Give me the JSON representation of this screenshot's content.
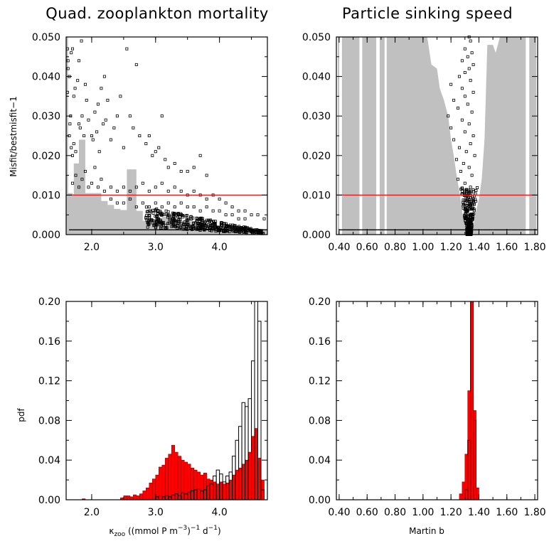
{
  "chart_data": [
    {
      "id": "tl",
      "type": "scatter",
      "title": "Quad. zooplankton mortality",
      "ylabel": "Misfit/bestmisfit−1",
      "xlim": [
        1.6,
        4.75
      ],
      "ylim": [
        0,
        0.05
      ],
      "xticks": [
        2.0,
        3.0,
        4.0
      ],
      "yticks": [
        "0.000",
        "0.010",
        "0.020",
        "0.030",
        "0.040",
        "0.050"
      ],
      "threshold": 0.01,
      "floor": 0.0012,
      "envelope": [
        [
          1.6,
          0.05
        ],
        [
          1.63,
          0.0105
        ],
        [
          1.7,
          0.0102
        ],
        [
          1.72,
          0.018
        ],
        [
          1.78,
          0.018
        ],
        [
          1.8,
          0.024
        ],
        [
          1.85,
          0.024
        ],
        [
          1.9,
          0.0105
        ],
        [
          2.0,
          0.0105
        ],
        [
          2.05,
          0.0105
        ],
        [
          2.15,
          0.0085
        ],
        [
          2.25,
          0.0075
        ],
        [
          2.35,
          0.0065
        ],
        [
          2.45,
          0.0062
        ],
        [
          2.55,
          0.0165
        ],
        [
          2.62,
          0.0165
        ],
        [
          2.7,
          0.006
        ],
        [
          2.8,
          0.0035
        ],
        [
          2.9,
          0.003
        ],
        [
          3.0,
          0.004
        ],
        [
          3.1,
          0.0045
        ],
        [
          3.2,
          0.004
        ],
        [
          3.4,
          0.0035
        ],
        [
          3.6,
          0.0025
        ],
        [
          3.8,
          0.002
        ],
        [
          4.0,
          0.0018
        ],
        [
          4.2,
          0.0016
        ],
        [
          4.4,
          0.0015
        ],
        [
          4.6,
          0.0014
        ],
        [
          4.75,
          0.0014
        ]
      ],
      "points": [
        [
          1.62,
          0.036
        ],
        [
          1.62,
          0.047
        ],
        [
          1.63,
          0.044
        ],
        [
          1.63,
          0.042
        ],
        [
          1.65,
          0.04
        ],
        [
          1.65,
          0.025
        ],
        [
          1.66,
          0.028
        ],
        [
          1.67,
          0.03
        ],
        [
          1.68,
          0.046
        ],
        [
          1.7,
          0.047
        ],
        [
          1.72,
          0.035
        ],
        [
          1.74,
          0.037
        ],
        [
          1.78,
          0.039
        ],
        [
          1.8,
          0.044
        ],
        [
          1.84,
          0.049
        ],
        [
          1.68,
          0.022
        ],
        [
          1.7,
          0.02
        ],
        [
          1.72,
          0.023
        ],
        [
          1.75,
          0.021
        ],
        [
          1.8,
          0.028
        ],
        [
          1.82,
          0.027
        ],
        [
          1.85,
          0.03
        ],
        [
          1.88,
          0.025
        ],
        [
          1.9,
          0.038
        ],
        [
          1.92,
          0.034
        ],
        [
          1.95,
          0.029
        ],
        [
          2.0,
          0.025
        ],
        [
          2.02,
          0.024
        ],
        [
          2.05,
          0.031
        ],
        [
          2.08,
          0.026
        ],
        [
          2.1,
          0.033
        ],
        [
          2.12,
          0.021
        ],
        [
          2.15,
          0.037
        ],
        [
          2.18,
          0.028
        ],
        [
          2.2,
          0.04
        ],
        [
          2.22,
          0.029
        ],
        [
          2.25,
          0.034
        ],
        [
          2.3,
          0.024
        ],
        [
          2.35,
          0.027
        ],
        [
          2.4,
          0.03
        ],
        [
          2.45,
          0.035
        ],
        [
          2.5,
          0.022
        ],
        [
          2.55,
          0.047
        ],
        [
          2.6,
          0.03
        ],
        [
          2.65,
          0.027
        ],
        [
          2.7,
          0.043
        ],
        [
          2.75,
          0.025
        ],
        [
          2.85,
          0.023
        ],
        [
          2.9,
          0.025
        ],
        [
          2.95,
          0.02
        ],
        [
          3.0,
          0.021
        ],
        [
          3.05,
          0.022
        ],
        [
          3.1,
          0.03
        ],
        [
          3.15,
          0.019
        ],
        [
          3.2,
          0.017
        ],
        [
          3.3,
          0.018
        ],
        [
          3.4,
          0.016
        ],
        [
          3.5,
          0.016
        ],
        [
          3.6,
          0.017
        ],
        [
          3.7,
          0.02
        ],
        [
          3.8,
          0.015
        ],
        [
          1.7,
          0.013
        ],
        [
          1.75,
          0.015
        ],
        [
          1.8,
          0.012
        ],
        [
          1.85,
          0.014
        ],
        [
          1.9,
          0.016
        ],
        [
          1.95,
          0.012
        ],
        [
          2.0,
          0.013
        ],
        [
          2.05,
          0.017
        ],
        [
          2.1,
          0.012
        ],
        [
          2.15,
          0.014
        ],
        [
          2.2,
          0.011
        ],
        [
          2.3,
          0.012
        ],
        [
          2.4,
          0.011
        ],
        [
          2.5,
          0.012
        ],
        [
          2.6,
          0.011
        ],
        [
          2.7,
          0.012
        ],
        [
          2.8,
          0.013
        ],
        [
          2.9,
          0.011
        ],
        [
          3.0,
          0.012
        ],
        [
          3.1,
          0.013
        ],
        [
          3.2,
          0.011
        ],
        [
          3.3,
          0.012
        ],
        [
          3.4,
          0.011
        ],
        [
          3.5,
          0.01
        ],
        [
          3.6,
          0.011
        ],
        [
          3.7,
          0.01
        ],
        [
          3.8,
          0.009
        ],
        [
          3.9,
          0.01
        ],
        [
          4.0,
          0.009
        ],
        [
          4.1,
          0.008
        ],
        [
          4.2,
          0.007
        ],
        [
          4.3,
          0.006
        ],
        [
          4.4,
          0.006
        ],
        [
          4.5,
          0.005
        ],
        [
          4.6,
          0.005
        ],
        [
          4.7,
          0.004
        ],
        [
          2.3,
          0.009
        ],
        [
          2.4,
          0.008
        ],
        [
          2.5,
          0.008
        ],
        [
          2.6,
          0.009
        ],
        [
          2.7,
          0.007
        ],
        [
          2.8,
          0.008
        ],
        [
          2.9,
          0.007
        ],
        [
          3.0,
          0.008
        ],
        [
          3.1,
          0.007
        ],
        [
          3.2,
          0.008
        ],
        [
          3.3,
          0.007
        ],
        [
          3.4,
          0.008
        ],
        [
          3.5,
          0.007
        ],
        [
          3.6,
          0.007
        ],
        [
          3.7,
          0.006
        ],
        [
          3.8,
          0.007
        ],
        [
          3.9,
          0.006
        ],
        [
          4.0,
          0.006
        ],
        [
          4.1,
          0.005
        ],
        [
          4.2,
          0.005
        ],
        [
          4.3,
          0.004
        ],
        [
          4.4,
          0.004
        ]
      ],
      "points_dense": {
        "x": [
          2.8,
          4.75
        ],
        "center": [
          3.35,
          0.0035
        ]
      }
    },
    {
      "id": "tr",
      "type": "scatter",
      "title": "Particle sinking speed",
      "xlim": [
        0.38,
        1.82
      ],
      "ylim": [
        0,
        0.05
      ],
      "xticks": [
        "0.40",
        "0.60",
        "0.80",
        "1.00",
        "1.20",
        "1.40",
        "1.60",
        "1.80"
      ],
      "yticks": [
        "0.000",
        "0.010",
        "0.020",
        "0.030",
        "0.040",
        "0.050"
      ],
      "threshold": 0.01,
      "floor": 0.0012,
      "gaps": [
        [
          0.4,
          0.42
        ],
        [
          0.545,
          0.565
        ],
        [
          0.665,
          0.69
        ],
        [
          0.725,
          0.74
        ],
        [
          1.735,
          1.76
        ]
      ],
      "cutout": [
        [
          1.03,
          0.05
        ],
        [
          1.06,
          0.043
        ],
        [
          1.1,
          0.042
        ],
        [
          1.12,
          0.037
        ],
        [
          1.15,
          0.034
        ],
        [
          1.18,
          0.03
        ],
        [
          1.2,
          0.024
        ],
        [
          1.22,
          0.02
        ],
        [
          1.24,
          0.015
        ],
        [
          1.26,
          0.011
        ],
        [
          1.28,
          0.006
        ],
        [
          1.3,
          0.002
        ],
        [
          1.33,
          0.0
        ],
        [
          1.36,
          0.002
        ],
        [
          1.38,
          0.006
        ],
        [
          1.4,
          0.009
        ],
        [
          1.42,
          0.014
        ],
        [
          1.44,
          0.024
        ],
        [
          1.46,
          0.048
        ],
        [
          1.5,
          0.048
        ],
        [
          1.52,
          0.046
        ],
        [
          1.55,
          0.05
        ]
      ],
      "points": [
        [
          1.33,
          0.05
        ],
        [
          1.34,
          0.049
        ],
        [
          1.3,
          0.047
        ],
        [
          1.32,
          0.045
        ],
        [
          1.35,
          0.046
        ],
        [
          1.28,
          0.044
        ],
        [
          1.36,
          0.043
        ],
        [
          1.3,
          0.041
        ],
        [
          1.33,
          0.042
        ],
        [
          1.26,
          0.04
        ],
        [
          1.34,
          0.039
        ],
        [
          1.2,
          0.038
        ],
        [
          1.28,
          0.037
        ],
        [
          1.36,
          0.036
        ],
        [
          1.22,
          0.034
        ],
        [
          1.3,
          0.035
        ],
        [
          1.32,
          0.033
        ],
        [
          1.25,
          0.032
        ],
        [
          1.35,
          0.031
        ],
        [
          1.18,
          0.03
        ],
        [
          1.28,
          0.029
        ],
        [
          1.33,
          0.028
        ],
        [
          1.2,
          0.027
        ],
        [
          1.3,
          0.026
        ],
        [
          1.36,
          0.025
        ],
        [
          1.22,
          0.024
        ],
        [
          1.34,
          0.023
        ],
        [
          1.26,
          0.022
        ],
        [
          1.31,
          0.021
        ],
        [
          1.37,
          0.02
        ],
        [
          1.24,
          0.019
        ],
        [
          1.29,
          0.018
        ],
        [
          1.33,
          0.017
        ],
        [
          1.27,
          0.016
        ],
        [
          1.35,
          0.015
        ],
        [
          1.25,
          0.014
        ],
        [
          1.3,
          0.013
        ],
        [
          1.34,
          0.012
        ],
        [
          1.28,
          0.011
        ],
        [
          1.32,
          0.01
        ],
        [
          1.36,
          0.009
        ],
        [
          1.3,
          0.008
        ],
        [
          1.33,
          0.007
        ],
        [
          1.31,
          0.006
        ],
        [
          1.34,
          0.005
        ],
        [
          1.32,
          0.004
        ],
        [
          1.33,
          0.003
        ],
        [
          1.325,
          0.002
        ],
        [
          1.335,
          0.001
        ]
      ]
    },
    {
      "id": "bl",
      "type": "bar",
      "ylabel": "pdf",
      "xlabel_sym": "κ",
      "xlabel_sub": "zoo",
      "xlabel_main": " ((mmol P m",
      "xlabel_sup1": "−3",
      "xlabel_mid": ")",
      "xlabel_sup2": "−1",
      "xlabel_end": " d",
      "xlabel_sup3": "−1",
      "xlabel_close": ")",
      "xlim": [
        1.6,
        4.75
      ],
      "ylim": [
        0,
        0.2
      ],
      "xticks": [
        "2.0",
        "3.0",
        "4.0"
      ],
      "yticks": [
        "0.00",
        "0.04",
        "0.08",
        "0.12",
        "0.16",
        "0.20"
      ],
      "bin_width": 0.05,
      "red_bins": [
        [
          1.85,
          0.001
        ],
        [
          2.45,
          0.002
        ],
        [
          2.5,
          0.004
        ],
        [
          2.55,
          0.004
        ],
        [
          2.6,
          0.003
        ],
        [
          2.65,
          0.005
        ],
        [
          2.7,
          0.004
        ],
        [
          2.75,
          0.006
        ],
        [
          2.8,
          0.009
        ],
        [
          2.85,
          0.012
        ],
        [
          2.9,
          0.017
        ],
        [
          2.95,
          0.021
        ],
        [
          3.0,
          0.025
        ],
        [
          3.05,
          0.033
        ],
        [
          3.1,
          0.035
        ],
        [
          3.15,
          0.042
        ],
        [
          3.2,
          0.046
        ],
        [
          3.25,
          0.055
        ],
        [
          3.3,
          0.048
        ],
        [
          3.35,
          0.044
        ],
        [
          3.4,
          0.04
        ],
        [
          3.45,
          0.038
        ],
        [
          3.5,
          0.036
        ],
        [
          3.55,
          0.032
        ],
        [
          3.6,
          0.03
        ],
        [
          3.65,
          0.028
        ],
        [
          3.7,
          0.025
        ],
        [
          3.75,
          0.027
        ],
        [
          3.8,
          0.021
        ],
        [
          3.85,
          0.02
        ],
        [
          3.9,
          0.018
        ],
        [
          3.95,
          0.016
        ],
        [
          4.0,
          0.018
        ],
        [
          4.05,
          0.016
        ],
        [
          4.1,
          0.017
        ],
        [
          4.15,
          0.02
        ],
        [
          4.2,
          0.025
        ],
        [
          4.25,
          0.03
        ],
        [
          4.3,
          0.032
        ],
        [
          4.35,
          0.036
        ],
        [
          4.4,
          0.04
        ],
        [
          4.45,
          0.048
        ],
        [
          4.5,
          0.064
        ],
        [
          4.55,
          0.072
        ],
        [
          4.6,
          0.042
        ],
        [
          4.65,
          0.02
        ]
      ],
      "outline_bins": [
        [
          3.0,
          0.003
        ],
        [
          3.05,
          0.004
        ],
        [
          3.1,
          0.003
        ],
        [
          3.15,
          0.004
        ],
        [
          3.2,
          0.003
        ],
        [
          3.25,
          0.005
        ],
        [
          3.3,
          0.006
        ],
        [
          3.35,
          0.004
        ],
        [
          3.4,
          0.007
        ],
        [
          3.45,
          0.006
        ],
        [
          3.5,
          0.008
        ],
        [
          3.55,
          0.009
        ],
        [
          3.6,
          0.01
        ],
        [
          3.65,
          0.011
        ],
        [
          3.7,
          0.009
        ],
        [
          3.75,
          0.01
        ],
        [
          3.8,
          0.014
        ],
        [
          3.85,
          0.016
        ],
        [
          3.9,
          0.024
        ],
        [
          3.95,
          0.03
        ],
        [
          4.0,
          0.026
        ],
        [
          4.05,
          0.018
        ],
        [
          4.1,
          0.024
        ],
        [
          4.15,
          0.028
        ],
        [
          4.2,
          0.044
        ],
        [
          4.25,
          0.06
        ],
        [
          4.3,
          0.074
        ],
        [
          4.35,
          0.098
        ],
        [
          4.4,
          0.094
        ],
        [
          4.45,
          0.102
        ],
        [
          4.5,
          0.14
        ],
        [
          4.55,
          0.2
        ],
        [
          4.6,
          0.18
        ],
        [
          4.65,
          0.01
        ]
      ]
    },
    {
      "id": "br",
      "type": "bar",
      "xlabel": "Martin b",
      "xlim": [
        0.38,
        1.82
      ],
      "ylim": [
        0,
        0.2
      ],
      "xticks": [
        "0.40",
        "0.60",
        "0.80",
        "1.00",
        "1.20",
        "1.40",
        "1.60",
        "1.80"
      ],
      "yticks": [
        "0.00",
        "0.04",
        "0.08",
        "0.12",
        "0.16",
        "0.20"
      ],
      "bin_width": 0.02,
      "red_bins": [
        [
          1.26,
          0.006
        ],
        [
          1.28,
          0.018
        ],
        [
          1.3,
          0.046
        ],
        [
          1.32,
          0.11
        ],
        [
          1.34,
          0.2
        ],
        [
          1.36,
          0.09
        ],
        [
          1.38,
          0.012
        ]
      ],
      "outline_bins": [
        [
          1.3,
          0.01
        ],
        [
          1.32,
          0.06
        ],
        [
          1.34,
          0.2
        ],
        [
          1.36,
          0.08
        ],
        [
          1.38,
          0.004
        ]
      ]
    }
  ]
}
